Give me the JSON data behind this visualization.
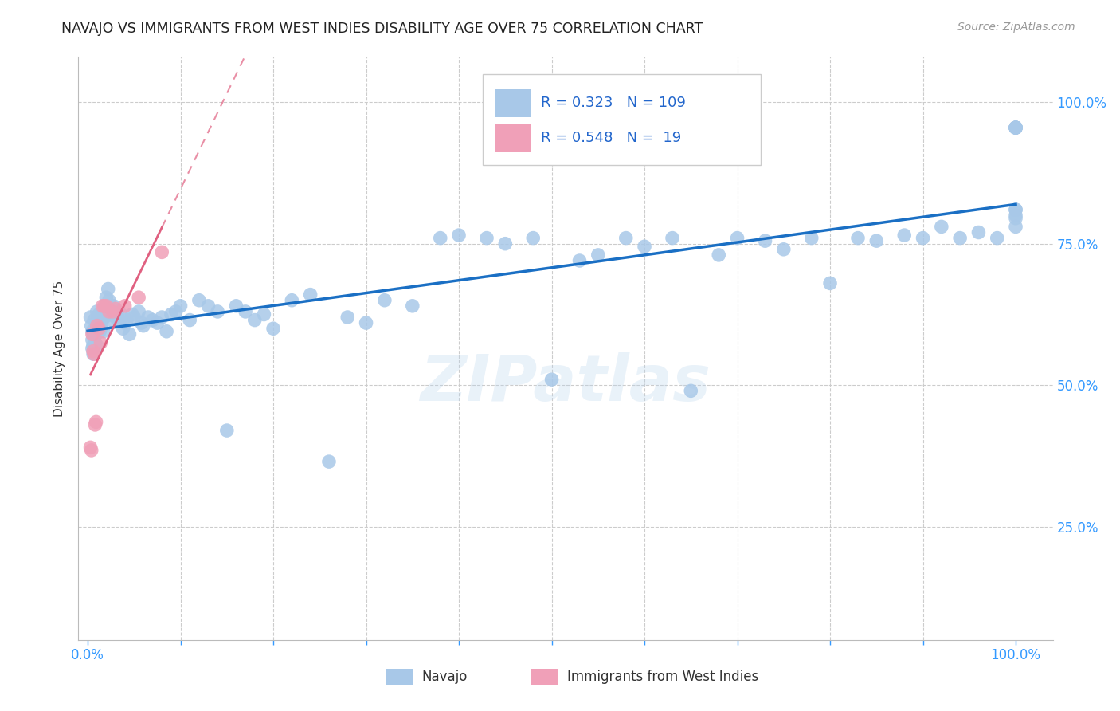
{
  "title": "NAVAJO VS IMMIGRANTS FROM WEST INDIES DISABILITY AGE OVER 75 CORRELATION CHART",
  "source": "Source: ZipAtlas.com",
  "ylabel": "Disability Age Over 75",
  "watermark": "ZIPatlas",
  "legend_label1": "Navajo",
  "legend_label2": "Immigrants from West Indies",
  "r1": 0.323,
  "n1": 109,
  "r2": 0.548,
  "n2": 19,
  "navajo_color": "#a8c8e8",
  "wi_color": "#f0a0b8",
  "trend1_color": "#1a6fc4",
  "trend2_color": "#e06080",
  "ytick_labels": [
    "25.0%",
    "50.0%",
    "75.0%",
    "100.0%"
  ],
  "ytick_values": [
    0.25,
    0.5,
    0.75,
    1.0
  ],
  "navajo_x": [
    0.003,
    0.004,
    0.005,
    0.005,
    0.005,
    0.006,
    0.006,
    0.007,
    0.007,
    0.008,
    0.008,
    0.009,
    0.009,
    0.01,
    0.01,
    0.01,
    0.01,
    0.011,
    0.012,
    0.012,
    0.013,
    0.013,
    0.014,
    0.015,
    0.016,
    0.017,
    0.018,
    0.018,
    0.02,
    0.021,
    0.022,
    0.023,
    0.025,
    0.026,
    0.028,
    0.03,
    0.032,
    0.034,
    0.036,
    0.038,
    0.04,
    0.042,
    0.045,
    0.048,
    0.05,
    0.055,
    0.058,
    0.06,
    0.065,
    0.07,
    0.075,
    0.08,
    0.085,
    0.09,
    0.095,
    0.1,
    0.11,
    0.12,
    0.13,
    0.14,
    0.15,
    0.16,
    0.17,
    0.18,
    0.19,
    0.2,
    0.22,
    0.24,
    0.26,
    0.28,
    0.3,
    0.32,
    0.35,
    0.38,
    0.4,
    0.43,
    0.45,
    0.48,
    0.5,
    0.53,
    0.55,
    0.58,
    0.6,
    0.63,
    0.65,
    0.68,
    0.7,
    0.73,
    0.75,
    0.78,
    0.8,
    0.83,
    0.85,
    0.88,
    0.9,
    0.92,
    0.94,
    0.96,
    0.98,
    1.0,
    1.0,
    1.0,
    1.0,
    1.0,
    1.0,
    1.0,
    1.0,
    1.0,
    1.0
  ],
  "navajo_y": [
    0.62,
    0.605,
    0.595,
    0.58,
    0.565,
    0.57,
    0.555,
    0.615,
    0.59,
    0.6,
    0.575,
    0.61,
    0.59,
    0.63,
    0.61,
    0.595,
    0.57,
    0.62,
    0.625,
    0.605,
    0.615,
    0.595,
    0.6,
    0.61,
    0.625,
    0.595,
    0.62,
    0.635,
    0.655,
    0.64,
    0.67,
    0.65,
    0.625,
    0.615,
    0.64,
    0.62,
    0.63,
    0.615,
    0.625,
    0.6,
    0.61,
    0.615,
    0.59,
    0.625,
    0.62,
    0.63,
    0.61,
    0.605,
    0.62,
    0.615,
    0.61,
    0.62,
    0.595,
    0.625,
    0.63,
    0.64,
    0.615,
    0.65,
    0.64,
    0.63,
    0.42,
    0.64,
    0.63,
    0.615,
    0.625,
    0.6,
    0.65,
    0.66,
    0.365,
    0.62,
    0.61,
    0.65,
    0.64,
    0.76,
    0.765,
    0.76,
    0.75,
    0.76,
    0.51,
    0.72,
    0.73,
    0.76,
    0.745,
    0.76,
    0.49,
    0.73,
    0.76,
    0.755,
    0.74,
    0.76,
    0.68,
    0.76,
    0.755,
    0.765,
    0.76,
    0.78,
    0.76,
    0.77,
    0.76,
    0.78,
    0.8,
    0.81,
    0.795,
    0.81,
    0.955,
    0.955,
    0.955,
    0.955,
    0.955
  ],
  "wi_x": [
    0.003,
    0.004,
    0.005,
    0.006,
    0.007,
    0.008,
    0.009,
    0.01,
    0.012,
    0.014,
    0.016,
    0.018,
    0.02,
    0.023,
    0.027,
    0.03,
    0.04,
    0.055,
    0.08
  ],
  "wi_y": [
    0.39,
    0.385,
    0.59,
    0.56,
    0.555,
    0.43,
    0.435,
    0.605,
    0.6,
    0.575,
    0.64,
    0.64,
    0.64,
    0.63,
    0.63,
    0.635,
    0.64,
    0.655,
    0.735
  ]
}
